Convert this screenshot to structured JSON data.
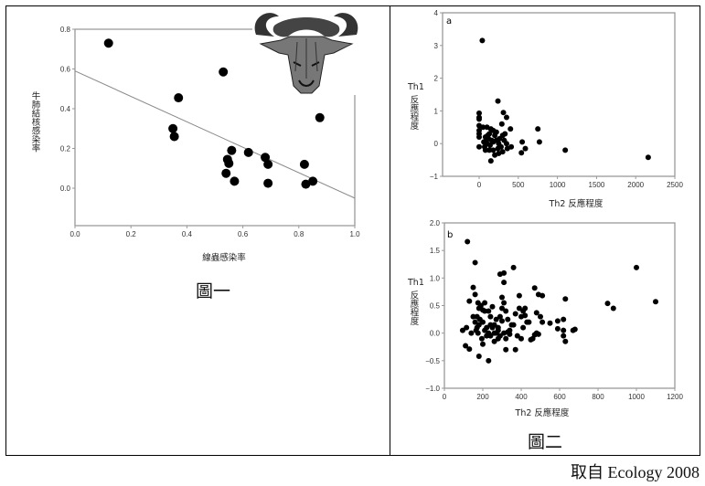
{
  "figure1": {
    "caption": "圖一",
    "chart_data": {
      "type": "scatter",
      "title": "",
      "xlabel": "線蟲感染率",
      "ylabel": "牛肺結核感染率",
      "xlim": [
        0.0,
        1.0
      ],
      "ylim": [
        -0.19,
        0.8
      ],
      "xticks": [
        "0.0",
        "0.2",
        "0.4",
        "0.6",
        "0.8",
        "1.0"
      ],
      "yticks": [
        "0.0",
        "0.2",
        "0.4",
        "0.6",
        "0.8"
      ],
      "points": [
        [
          0.12,
          0.73
        ],
        [
          0.53,
          0.585
        ],
        [
          0.37,
          0.455
        ],
        [
          0.35,
          0.3
        ],
        [
          0.355,
          0.26
        ],
        [
          0.56,
          0.19
        ],
        [
          0.62,
          0.18
        ],
        [
          0.545,
          0.145
        ],
        [
          0.55,
          0.125
        ],
        [
          0.68,
          0.155
        ],
        [
          0.69,
          0.12
        ],
        [
          0.54,
          0.075
        ],
        [
          0.57,
          0.035
        ],
        [
          0.69,
          0.025
        ],
        [
          0.82,
          0.12
        ],
        [
          0.825,
          0.02
        ],
        [
          0.85,
          0.035
        ],
        [
          0.875,
          0.355
        ]
      ],
      "fit_line": [
        [
          0.0,
          0.59
        ],
        [
          1.0,
          -0.05
        ]
      ],
      "illustration": "buffalo-head"
    }
  },
  "figure2": {
    "caption": "圖二",
    "charts": [
      {
        "panel": "a",
        "type": "scatter",
        "xlabel": "Th2 反應程度",
        "ylabel_top": "Th1",
        "ylabel": "反應程度",
        "xlim": [
          -450,
          2500
        ],
        "ylim": [
          -1,
          4
        ],
        "xticks": [
          "0",
          "500",
          "1000",
          "1500",
          "2000",
          "2500"
        ],
        "yticks": [
          "−1",
          "0",
          "1",
          "2",
          "3",
          "4"
        ],
        "points": [
          [
            40,
            3.15
          ],
          [
            240,
            1.3
          ],
          [
            310,
            0.95
          ],
          [
            350,
            0.8
          ],
          [
            290,
            0.6
          ],
          [
            400,
            0.45
          ],
          [
            750,
            0.45
          ],
          [
            770,
            0.05
          ],
          [
            550,
            0.05
          ],
          [
            590,
            -0.15
          ],
          [
            540,
            -0.28
          ],
          [
            1100,
            -0.2
          ],
          [
            2160,
            -0.42
          ],
          [
            0,
            0.93
          ],
          [
            0,
            0.8
          ],
          [
            0,
            0.75
          ],
          [
            0,
            0.55
          ],
          [
            0,
            0.4
          ],
          [
            0,
            0.3
          ],
          [
            0,
            0.2
          ],
          [
            0,
            -0.1
          ],
          [
            100,
            0.5
          ],
          [
            50,
            0.5
          ],
          [
            150,
            0.45
          ],
          [
            180,
            0.4
          ],
          [
            130,
            0.3
          ],
          [
            200,
            0.25
          ],
          [
            80,
            0.2
          ],
          [
            120,
            0.15
          ],
          [
            160,
            0.1
          ],
          [
            220,
            0.1
          ],
          [
            60,
            0.05
          ],
          [
            100,
            0
          ],
          [
            140,
            -0.05
          ],
          [
            180,
            0.05
          ],
          [
            250,
            0
          ],
          [
            300,
            0.25
          ],
          [
            320,
            0.1
          ],
          [
            350,
            0
          ],
          [
            280,
            -0.1
          ],
          [
            410,
            -0.1
          ],
          [
            200,
            -0.35
          ],
          [
            150,
            -0.53
          ],
          [
            250,
            -0.3
          ],
          [
            300,
            -0.25
          ],
          [
            180,
            -0.2
          ],
          [
            80,
            -0.2
          ],
          [
            130,
            -0.2
          ],
          [
            220,
            0.35
          ],
          [
            260,
            0.15
          ],
          [
            360,
            -0.15
          ],
          [
            110,
            0.25
          ],
          [
            90,
            0.1
          ],
          [
            240,
            -0.15
          ],
          [
            330,
            0.3
          ],
          [
            70,
            -0.1
          ]
        ]
      },
      {
        "panel": "b",
        "type": "scatter",
        "xlabel": "Th2 反應程度",
        "ylabel_top": "Th1",
        "ylabel": "反應程度",
        "xlim": [
          0,
          1200
        ],
        "ylim": [
          -1.0,
          2.0
        ],
        "xticks": [
          "0",
          "200",
          "400",
          "600",
          "800",
          "1000",
          "1200"
        ],
        "yticks": [
          "−1.0",
          "−0.5",
          "0.0",
          "0.5",
          "1.0",
          "1.5",
          "2.0"
        ],
        "points": [
          [
            120,
            1.66
          ],
          [
            160,
            1.28
          ],
          [
            130,
            0.58
          ],
          [
            150,
            0.83
          ],
          [
            160,
            0.7
          ],
          [
            110,
            -0.23
          ],
          [
            130,
            -0.29
          ],
          [
            180,
            -0.42
          ],
          [
            230,
            -0.5
          ],
          [
            95,
            0.05
          ],
          [
            115,
            0.1
          ],
          [
            140,
            0.0
          ],
          [
            150,
            0.3
          ],
          [
            170,
            0.3
          ],
          [
            175,
            0.55
          ],
          [
            180,
            0.45
          ],
          [
            190,
            0.5
          ],
          [
            200,
            0.2
          ],
          [
            200,
            -0.2
          ],
          [
            195,
            -0.1
          ],
          [
            210,
            0.55
          ],
          [
            210,
            0.4
          ],
          [
            220,
            0.1
          ],
          [
            230,
            0.4
          ],
          [
            240,
            0.3
          ],
          [
            250,
            0.48
          ],
          [
            250,
            0.1
          ],
          [
            260,
            0.15
          ],
          [
            270,
            0.0
          ],
          [
            280,
            -0.1
          ],
          [
            290,
            1.07
          ],
          [
            310,
            1.09
          ],
          [
            310,
            0.92
          ],
          [
            300,
            0.65
          ],
          [
            310,
            0.55
          ],
          [
            300,
            0.45
          ],
          [
            320,
            0.4
          ],
          [
            320,
            -0.1
          ],
          [
            320,
            -0.3
          ],
          [
            330,
            0.25
          ],
          [
            340,
            0.05
          ],
          [
            360,
            1.19
          ],
          [
            370,
            0.35
          ],
          [
            370,
            -0.3
          ],
          [
            390,
            0.68
          ],
          [
            390,
            0.45
          ],
          [
            400,
            0.3
          ],
          [
            400,
            -0.1
          ],
          [
            410,
            0.1
          ],
          [
            420,
            0.45
          ],
          [
            430,
            0.2
          ],
          [
            450,
            -0.12
          ],
          [
            470,
            0.82
          ],
          [
            480,
            0.37
          ],
          [
            480,
            0.0
          ],
          [
            490,
            0.7
          ],
          [
            500,
            0.3
          ],
          [
            510,
            0.68
          ],
          [
            510,
            0.2
          ],
          [
            550,
            0.18
          ],
          [
            590,
            0.22
          ],
          [
            590,
            0.08
          ],
          [
            620,
            0.25
          ],
          [
            620,
            0.05
          ],
          [
            620,
            -0.05
          ],
          [
            630,
            0.62
          ],
          [
            630,
            -0.15
          ],
          [
            670,
            0.05
          ],
          [
            680,
            0.07
          ],
          [
            850,
            0.54
          ],
          [
            880,
            0.45
          ],
          [
            1000,
            1.19
          ],
          [
            1100,
            0.57
          ],
          [
            170,
            0.1
          ],
          [
            175,
            0.0
          ],
          [
            180,
            0.15
          ],
          [
            230,
            0.0
          ],
          [
            240,
            -0.05
          ],
          [
            260,
            -0.15
          ],
          [
            270,
            0.25
          ],
          [
            280,
            0.1
          ],
          [
            290,
            0.3
          ],
          [
            300,
            0.22
          ],
          [
            330,
            0.02
          ],
          [
            350,
            0.15
          ],
          [
            360,
            0.15
          ],
          [
            380,
            -0.05
          ],
          [
            410,
            0.4
          ],
          [
            420,
            0.32
          ],
          [
            440,
            0.2
          ],
          [
            460,
            -0.1
          ],
          [
            470,
            -0.03
          ],
          [
            490,
            -0.02
          ],
          [
            160,
            0.2
          ],
          [
            165,
            0.05
          ],
          [
            185,
            0.25
          ],
          [
            210,
            0.05
          ],
          [
            220,
            -0.05
          ],
          [
            260,
            0.0
          ],
          [
            280,
            0.05
          ],
          [
            290,
            -0.05
          ],
          [
            310,
            0.0
          ],
          [
            200,
            0.42
          ],
          [
            240,
            0.15
          ],
          [
            340,
            -0.02
          ]
        ]
      }
    ]
  },
  "source": "取自 Ecology 2008",
  "chart_data": [
    {
      "ref": "figure1.chart_data"
    },
    {
      "ref": "figure2.charts.0"
    },
    {
      "ref": "figure2.charts.1"
    }
  ]
}
